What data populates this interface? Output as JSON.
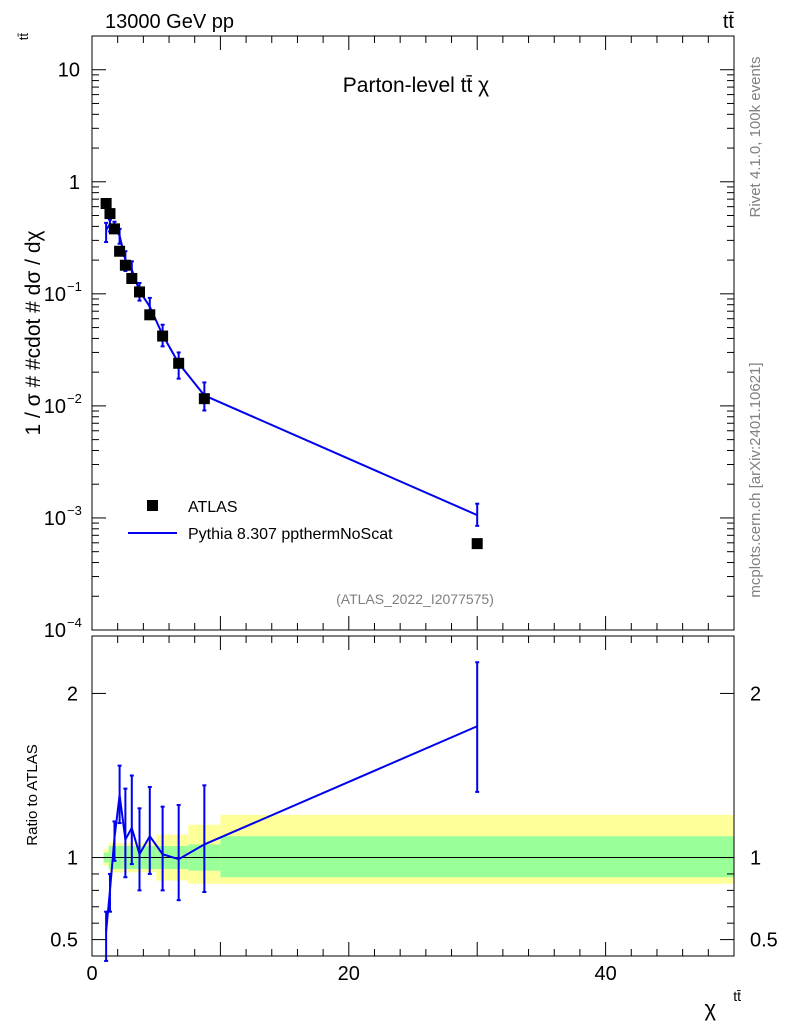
{
  "header": {
    "left": "13000 GeV pp",
    "right": "tt̄"
  },
  "side_labels": {
    "rivet": "Rivet 4.1.0,  100k events",
    "mcplots": "mcplots.cern.ch [arXiv:2401.10621]"
  },
  "colors": {
    "data": "#000000",
    "mc": "#0000ee",
    "band_inner": "#99ff99",
    "band_outer": "#ffff99"
  },
  "chart_data": [
    {
      "type": "scatter",
      "panel": "main",
      "title": "Parton-level tt̄ χ",
      "watermark": "(ATLAS_2022_I2077575)",
      "ylabel": "1 / σ # #cdot # dσ / dχ",
      "ylabel_sup": "tt̄",
      "yscale": "log",
      "ylim": [
        0.0001,
        20
      ],
      "xlim": [
        0,
        50
      ],
      "ytick_labels": [
        {
          "value": 10,
          "base": "10",
          "exp": ""
        },
        {
          "value": 1,
          "base": "1",
          "exp": ""
        },
        {
          "value": 0.1,
          "base": "10",
          "exp": "−1"
        },
        {
          "value": 0.01,
          "base": "10",
          "exp": "−2"
        },
        {
          "value": 0.001,
          "base": "10",
          "exp": "−3"
        },
        {
          "value": 0.0001,
          "base": "10",
          "exp": "−4"
        }
      ],
      "legend": [
        {
          "label": "ATLAS",
          "marker": "square"
        },
        {
          "label": "Pythia 8.307 ppthermNoScat",
          "marker": "line"
        }
      ],
      "series": [
        {
          "name": "ATLAS",
          "x": [
            1.1,
            1.4,
            1.75,
            2.15,
            2.6,
            3.1,
            3.7,
            4.5,
            5.5,
            6.75,
            8.75,
            30
          ],
          "y": [
            0.64,
            0.52,
            0.38,
            0.24,
            0.18,
            0.137,
            0.104,
            0.065,
            0.042,
            0.024,
            0.0116,
            0.00059
          ],
          "xerr": [
            0.1,
            0.15,
            0.2,
            0.2,
            0.25,
            0.25,
            0.35,
            0.45,
            0.55,
            0.7,
            1.25,
            20
          ]
        },
        {
          "name": "Pythia 8.307 ppthermNoScat",
          "x": [
            1.1,
            1.4,
            1.75,
            2.15,
            2.6,
            3.1,
            3.7,
            4.5,
            5.5,
            6.75,
            8.75,
            30
          ],
          "y": [
            0.37,
            0.42,
            0.4,
            0.33,
            0.2,
            0.164,
            0.106,
            0.077,
            0.043,
            0.024,
            0.0124,
            0.00106
          ],
          "ylow": [
            0.29,
            0.36,
            0.35,
            0.28,
            0.16,
            0.13,
            0.087,
            0.062,
            0.034,
            0.0175,
            0.0091,
            0.00085
          ],
          "yhigh": [
            0.43,
            0.46,
            0.44,
            0.38,
            0.24,
            0.195,
            0.125,
            0.092,
            0.053,
            0.03,
            0.0162,
            0.00134
          ]
        }
      ]
    },
    {
      "type": "line",
      "panel": "ratio",
      "ylabel": "Ratio to ATLAS",
      "xlabel": "χ",
      "xlabel_sup": "tt̄",
      "xlim": [
        0,
        50
      ],
      "ylim": [
        0.4,
        2.35
      ],
      "xticks": [
        0,
        20,
        40
      ],
      "yticks": [
        0.5,
        1,
        2
      ],
      "band_edges": [
        0.9,
        1.3,
        1.5,
        2.0,
        2.4,
        2.9,
        3.4,
        4.0,
        5.0,
        6.0,
        7.5,
        10.0,
        50.0
      ],
      "band_inner_low": [
        0.97,
        0.93,
        0.93,
        0.93,
        0.93,
        0.93,
        0.93,
        0.93,
        0.93,
        0.93,
        0.92,
        0.88
      ],
      "band_inner_high": [
        1.03,
        1.07,
        1.07,
        1.07,
        1.07,
        1.07,
        1.07,
        1.07,
        1.07,
        1.07,
        1.08,
        1.13
      ],
      "band_outer_low": [
        0.95,
        0.91,
        0.91,
        0.91,
        0.91,
        0.91,
        0.91,
        0.91,
        0.86,
        0.86,
        0.84,
        0.84
      ],
      "band_outer_high": [
        1.05,
        1.09,
        1.09,
        1.09,
        1.09,
        1.09,
        1.09,
        1.09,
        1.14,
        1.14,
        1.2,
        1.26
      ],
      "series": [
        {
          "name": "Pythia 8.307 ppthermNoScat",
          "x": [
            1.1,
            1.4,
            1.75,
            2.15,
            2.6,
            3.1,
            3.7,
            4.5,
            5.5,
            6.75,
            8.75,
            30
          ],
          "y": [
            0.55,
            0.8,
            1.12,
            1.38,
            1.11,
            1.18,
            1.02,
            1.13,
            1.02,
            0.99,
            1.08,
            1.8
          ],
          "ylow": [
            0.37,
            0.67,
            0.98,
            1.21,
            0.88,
            0.96,
            0.8,
            0.9,
            0.8,
            0.74,
            0.79,
            1.4
          ],
          "yhigh": [
            0.67,
            0.9,
            1.22,
            1.56,
            1.42,
            1.5,
            1.3,
            1.43,
            1.31,
            1.32,
            1.44,
            2.19
          ]
        }
      ]
    }
  ]
}
